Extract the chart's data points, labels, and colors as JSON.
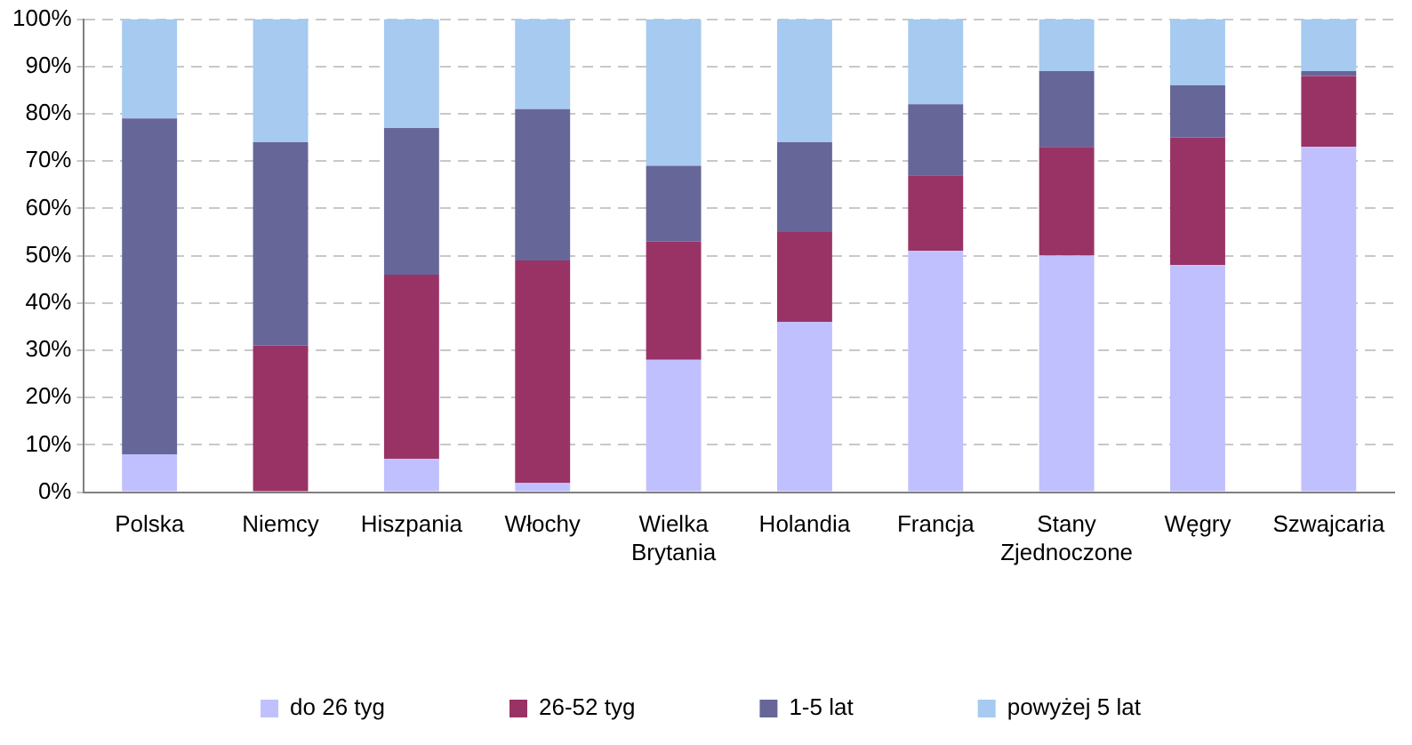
{
  "chart_data": {
    "type": "bar",
    "stacked": true,
    "categories": [
      "Polska",
      "Niemcy",
      "Hiszpania",
      "Włochy",
      "Wielka Brytania",
      "Holandia",
      "Francja",
      "Stany Zjednoczone",
      "Węgry",
      "Szwajcaria"
    ],
    "series": [
      {
        "name": "do 26 tyg",
        "color": "#c0c0ff",
        "values": [
          8,
          0,
          7,
          2,
          28,
          36,
          51,
          50,
          48,
          73
        ]
      },
      {
        "name": "26-52 tyg",
        "color": "#993366",
        "values": [
          0,
          31,
          39,
          47,
          25,
          19,
          16,
          23,
          27,
          15
        ]
      },
      {
        "name": "1-5 lat",
        "color": "#666699",
        "values": [
          71,
          43,
          31,
          32,
          16,
          19,
          15,
          16,
          11,
          1
        ]
      },
      {
        "name": "powyżej 5 lat",
        "color": "#a6caf0",
        "values": [
          21,
          26,
          23,
          19,
          31,
          26,
          18,
          11,
          14,
          11
        ]
      }
    ],
    "ylim": [
      0,
      100
    ],
    "yticks": [
      {
        "value": 0,
        "label": "0%"
      },
      {
        "value": 10,
        "label": "10%"
      },
      {
        "value": 20,
        "label": "20%"
      },
      {
        "value": 30,
        "label": "30%"
      },
      {
        "value": 40,
        "label": "40%"
      },
      {
        "value": 50,
        "label": "50%"
      },
      {
        "value": 60,
        "label": "60%"
      },
      {
        "value": 70,
        "label": "70%"
      },
      {
        "value": 80,
        "label": "80%"
      },
      {
        "value": 90,
        "label": "90%"
      },
      {
        "value": 100,
        "label": "100%"
      }
    ],
    "grid": "y",
    "legend": "bottom"
  }
}
